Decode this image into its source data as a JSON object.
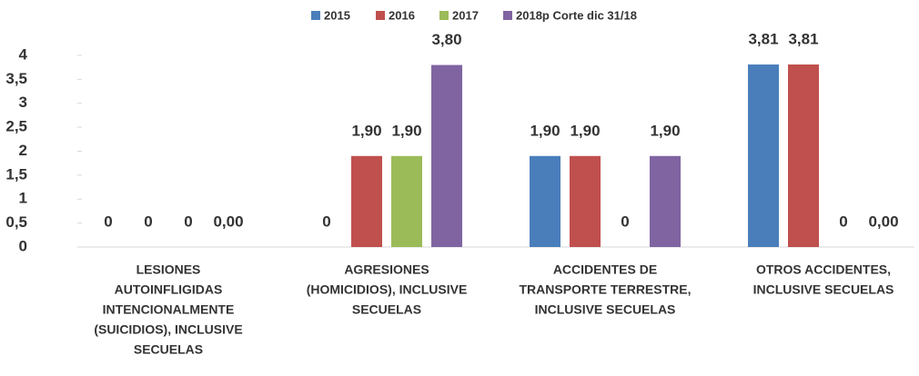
{
  "chart_data": {
    "type": "bar",
    "categories": [
      [
        "LESIONES",
        "AUTOINFLIGIDAS",
        "INTENCIONALMENTE",
        "(SUICIDIOS), INCLUSIVE",
        "SECUELAS"
      ],
      [
        "AGRESIONES",
        "(HOMICIDIOS), INCLUSIVE",
        "SECUELAS"
      ],
      [
        "ACCIDENTES DE",
        "TRANSPORTE TERRESTRE,",
        "INCLUSIVE SECUELAS"
      ],
      [
        "OTROS ACCIDENTES,",
        "INCLUSIVE SECUELAS"
      ]
    ],
    "series": [
      {
        "name": "2015",
        "color": "#4a7ebb",
        "values": [
          0,
          0,
          1.9,
          3.81
        ],
        "value_labels": [
          "0",
          "0",
          "1,90",
          "3,81"
        ]
      },
      {
        "name": "2016",
        "color": "#c0504d",
        "values": [
          0,
          1.9,
          1.9,
          3.81
        ],
        "value_labels": [
          "0",
          "1,90",
          "1,90",
          "3,81"
        ]
      },
      {
        "name": "2017",
        "color": "#9bbb59",
        "values": [
          0,
          1.9,
          0,
          0
        ],
        "value_labels": [
          "0",
          "1,90",
          "0",
          "0"
        ]
      },
      {
        "name": "2018p Corte dic 31/18",
        "color": "#8064a2",
        "values": [
          0.0,
          3.8,
          1.9,
          0.0
        ],
        "value_labels": [
          "0,00",
          "3,80",
          "1,90",
          "0,00"
        ]
      }
    ],
    "ylim": [
      0,
      4
    ],
    "yticks": [
      0,
      {
        "value": 0.5,
        "label": "0,5"
      },
      1,
      {
        "value": 1.5,
        "label": "1,5"
      },
      2,
      {
        "value": 2.5,
        "label": "2,5"
      },
      3,
      {
        "value": 3.5,
        "label": "3,5"
      },
      4
    ],
    "grid": false,
    "legend": "top"
  }
}
